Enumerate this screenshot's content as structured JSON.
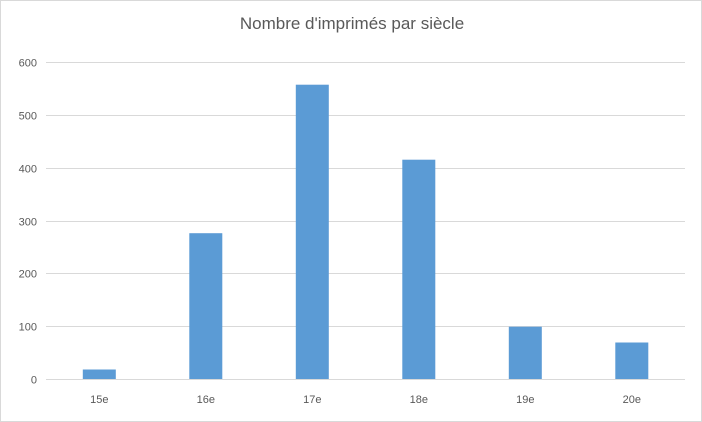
{
  "chart_data": {
    "type": "bar",
    "title": "Nombre d'imprimés par siècle",
    "categories": [
      "15e",
      "16e",
      "17e",
      "18e",
      "19e",
      "20e"
    ],
    "values": [
      18,
      276,
      557,
      415,
      99,
      69
    ],
    "ylim": [
      0,
      600
    ],
    "yticks": [
      "0",
      "100",
      "200",
      "300",
      "400",
      "500",
      "600"
    ],
    "grid": true,
    "legend": "none",
    "colors": {
      "bar": "#5b9bd5",
      "grid": "#d9d9d9",
      "axis": "#d9d9d9",
      "text": "#595959"
    }
  }
}
